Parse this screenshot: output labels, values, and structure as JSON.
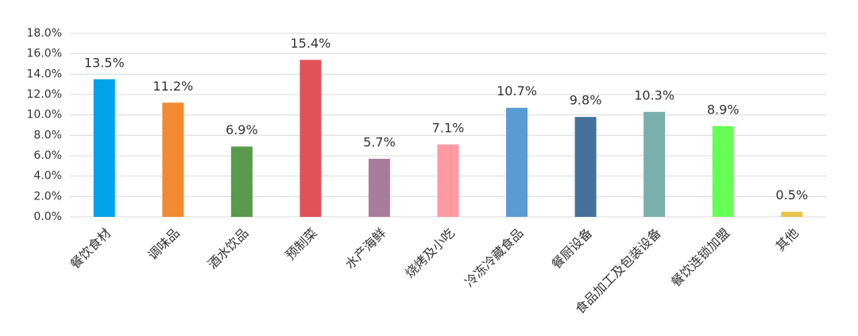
{
  "chart_data": {
    "type": "bar",
    "categories": [
      "餐饮食材",
      "调味品",
      "酒水饮品",
      "预制菜",
      "水产海鲜",
      "烧烤及小吃",
      "冷冻冷藏食品",
      "餐厨设备",
      "食品加工及包装设备",
      "餐饮连锁加盟",
      "其他"
    ],
    "values": [
      13.5,
      11.2,
      6.9,
      15.4,
      5.7,
      7.1,
      10.7,
      9.8,
      10.3,
      8.9,
      0.5
    ],
    "value_labels": [
      "13.5%",
      "11.2%",
      "6.9%",
      "15.4%",
      "5.7%",
      "7.1%",
      "10.7%",
      "9.8%",
      "10.3%",
      "8.9%",
      "0.5%"
    ],
    "colors": [
      "#00a2e8",
      "#f28a30",
      "#5a9a4b",
      "#e05258",
      "#a97c9c",
      "#ff9aa2",
      "#5b9bd5",
      "#44719c",
      "#7ab0ac",
      "#66ff55",
      "#e8c24a"
    ],
    "ylim": [
      0,
      18
    ],
    "yticks": [
      {
        "value": 0,
        "label": "0.0%"
      },
      {
        "value": 2,
        "label": "2.0%"
      },
      {
        "value": 4,
        "label": "4.0%"
      },
      {
        "value": 6,
        "label": "6.0%"
      },
      {
        "value": 8,
        "label": "8.0%"
      },
      {
        "value": 10,
        "label": "10.0%"
      },
      {
        "value": 12,
        "label": "12.0%"
      },
      {
        "value": 14,
        "label": "14.0%"
      },
      {
        "value": 16,
        "label": "16.0%"
      },
      {
        "value": 18,
        "label": "18.0%"
      }
    ],
    "grid": true
  }
}
